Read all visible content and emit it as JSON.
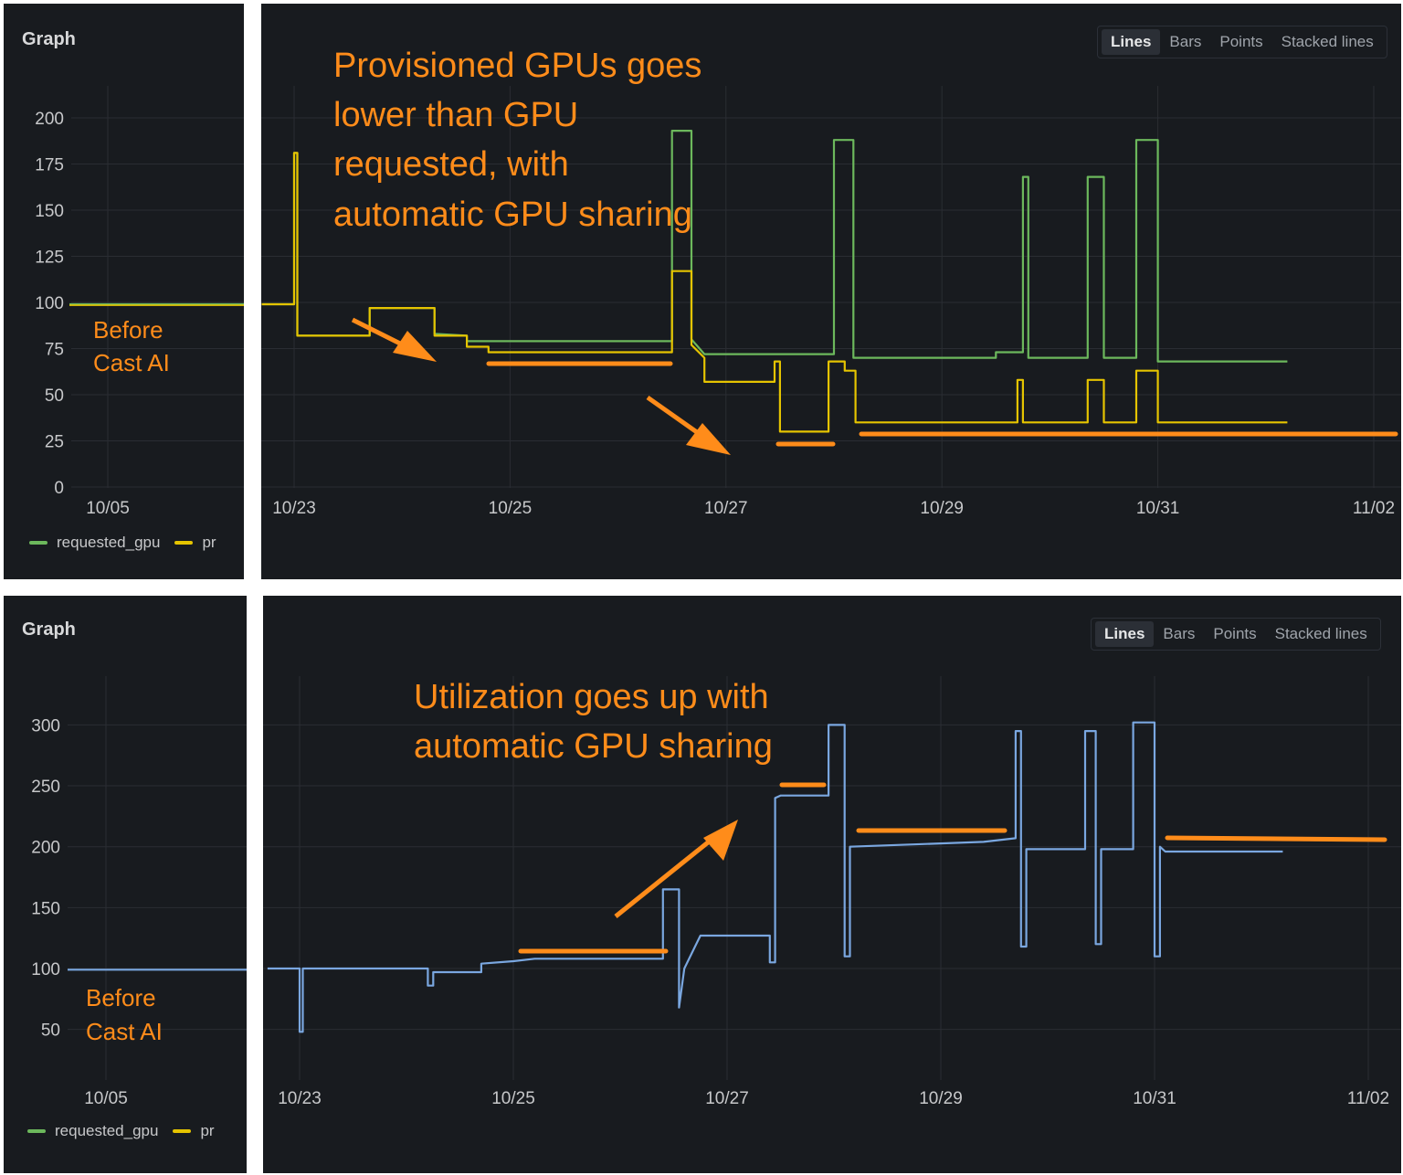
{
  "colors": {
    "requested": "#6cb85c",
    "provisioned": "#e5c400",
    "utilization": "#7aa7e0",
    "annotation": "#ff8c1a",
    "panel": "#181b1f",
    "grid": "#2a2d33",
    "tick": "#c7c8ca"
  },
  "panel_title": "Graph",
  "view_toggle": {
    "lines": "Lines",
    "bars": "Bars",
    "points": "Points",
    "stacked": "Stacked lines"
  },
  "legend": {
    "requested": "requested_gpu",
    "provisioned": "pr"
  },
  "before_label": {
    "line1": "Before",
    "line2": "Cast AI"
  },
  "annotations": {
    "top": [
      "Provisioned GPUs goes",
      "lower than GPU",
      "requested, with",
      "automatic GPU sharing"
    ],
    "bottom": [
      "Utilization goes up with",
      "automatic GPU sharing"
    ]
  },
  "chart_data": [
    {
      "type": "line",
      "title": "Graph",
      "x_ticks_before": [
        "10/05"
      ],
      "x_ticks": [
        "10/23",
        "10/25",
        "10/27",
        "10/29",
        "10/31",
        "11/02"
      ],
      "y_ticks": [
        0,
        25,
        50,
        75,
        100,
        125,
        150,
        175,
        200
      ],
      "ylim": [
        0,
        215
      ],
      "x_unit": "day of october (10/23 = 23)",
      "before_values": {
        "requested_gpu": 99,
        "provisioned": 99
      },
      "series": [
        {
          "name": "requested_gpu",
          "points": [
            [
              22.7,
              99
            ],
            [
              23.0,
              99
            ],
            [
              23.0,
              181
            ],
            [
              23.03,
              181
            ],
            [
              23.03,
              82
            ],
            [
              23.7,
              82
            ],
            [
              23.7,
              97
            ],
            [
              24.3,
              97
            ],
            [
              24.3,
              83
            ],
            [
              24.6,
              82
            ],
            [
              24.6,
              79
            ],
            [
              26.5,
              79
            ],
            [
              26.5,
              193
            ],
            [
              26.68,
              193
            ],
            [
              26.68,
              80
            ],
            [
              26.8,
              72
            ],
            [
              28.0,
              72
            ],
            [
              28.0,
              188
            ],
            [
              28.18,
              188
            ],
            [
              28.18,
              70
            ],
            [
              29.5,
              70
            ],
            [
              29.5,
              73
            ],
            [
              29.75,
              73
            ],
            [
              29.75,
              168
            ],
            [
              29.8,
              168
            ],
            [
              29.8,
              70
            ],
            [
              30.35,
              70
            ],
            [
              30.35,
              168
            ],
            [
              30.5,
              168
            ],
            [
              30.5,
              70
            ],
            [
              30.8,
              70
            ],
            [
              30.8,
              188
            ],
            [
              31.0,
              188
            ],
            [
              31.0,
              68
            ],
            [
              32.2,
              68
            ]
          ]
        },
        {
          "name": "provisioned",
          "points": [
            [
              22.7,
              99
            ],
            [
              23.0,
              99
            ],
            [
              23.0,
              181
            ],
            [
              23.03,
              181
            ],
            [
              23.03,
              82
            ],
            [
              23.7,
              82
            ],
            [
              23.7,
              97
            ],
            [
              24.3,
              97
            ],
            [
              24.3,
              82
            ],
            [
              24.6,
              82
            ],
            [
              24.6,
              76
            ],
            [
              24.8,
              76
            ],
            [
              24.8,
              73
            ],
            [
              26.5,
              73
            ],
            [
              26.5,
              117
            ],
            [
              26.68,
              117
            ],
            [
              26.68,
              77
            ],
            [
              26.8,
              70
            ],
            [
              26.8,
              57
            ],
            [
              27.45,
              57
            ],
            [
              27.45,
              68
            ],
            [
              27.5,
              68
            ],
            [
              27.5,
              30
            ],
            [
              27.95,
              30
            ],
            [
              27.95,
              68
            ],
            [
              28.1,
              68
            ],
            [
              28.1,
              63
            ],
            [
              28.2,
              63
            ],
            [
              28.2,
              35
            ],
            [
              29.7,
              35
            ],
            [
              29.7,
              58
            ],
            [
              29.75,
              58
            ],
            [
              29.75,
              35
            ],
            [
              30.35,
              35
            ],
            [
              30.35,
              58
            ],
            [
              30.5,
              58
            ],
            [
              30.5,
              35
            ],
            [
              30.8,
              35
            ],
            [
              30.8,
              63
            ],
            [
              31.0,
              63
            ],
            [
              31.0,
              35
            ],
            [
              32.2,
              35
            ]
          ]
        }
      ]
    },
    {
      "type": "line",
      "title": "Graph",
      "x_ticks_before": [
        "10/05"
      ],
      "x_ticks": [
        "10/23",
        "10/25",
        "10/27",
        "10/29",
        "10/31",
        "11/02"
      ],
      "y_ticks": [
        50,
        100,
        150,
        200,
        250,
        300
      ],
      "ylim": [
        20,
        330
      ],
      "x_unit": "day of october (10/23 = 23)",
      "before_values": {
        "utilization": 99
      },
      "series": [
        {
          "name": "utilization",
          "points": [
            [
              22.7,
              100
            ],
            [
              23.0,
              100
            ],
            [
              23.0,
              48
            ],
            [
              23.03,
              48
            ],
            [
              23.03,
              100
            ],
            [
              24.2,
              100
            ],
            [
              24.2,
              86
            ],
            [
              24.25,
              86
            ],
            [
              24.25,
              97
            ],
            [
              24.7,
              97
            ],
            [
              24.7,
              104
            ],
            [
              25.0,
              106
            ],
            [
              25.2,
              108
            ],
            [
              26.4,
              108
            ],
            [
              26.4,
              165
            ],
            [
              26.55,
              165
            ],
            [
              26.55,
              68
            ],
            [
              26.6,
              100
            ],
            [
              26.7,
              118
            ],
            [
              26.75,
              127
            ],
            [
              27.4,
              127
            ],
            [
              27.4,
              105
            ],
            [
              27.45,
              105
            ],
            [
              27.45,
              240
            ],
            [
              27.5,
              242
            ],
            [
              27.95,
              242
            ],
            [
              27.95,
              300
            ],
            [
              28.1,
              300
            ],
            [
              28.1,
              110
            ],
            [
              28.15,
              110
            ],
            [
              28.15,
              200
            ],
            [
              29.4,
              204
            ],
            [
              29.7,
              207
            ],
            [
              29.7,
              295
            ],
            [
              29.75,
              295
            ],
            [
              29.75,
              118
            ],
            [
              29.8,
              118
            ],
            [
              29.8,
              198
            ],
            [
              30.35,
              198
            ],
            [
              30.35,
              295
            ],
            [
              30.45,
              295
            ],
            [
              30.45,
              120
            ],
            [
              30.5,
              120
            ],
            [
              30.5,
              198
            ],
            [
              30.8,
              198
            ],
            [
              30.8,
              302
            ],
            [
              31.0,
              302
            ],
            [
              31.0,
              110
            ],
            [
              31.05,
              110
            ],
            [
              31.05,
              200
            ],
            [
              31.1,
              196
            ],
            [
              32.2,
              196
            ]
          ]
        }
      ]
    }
  ]
}
